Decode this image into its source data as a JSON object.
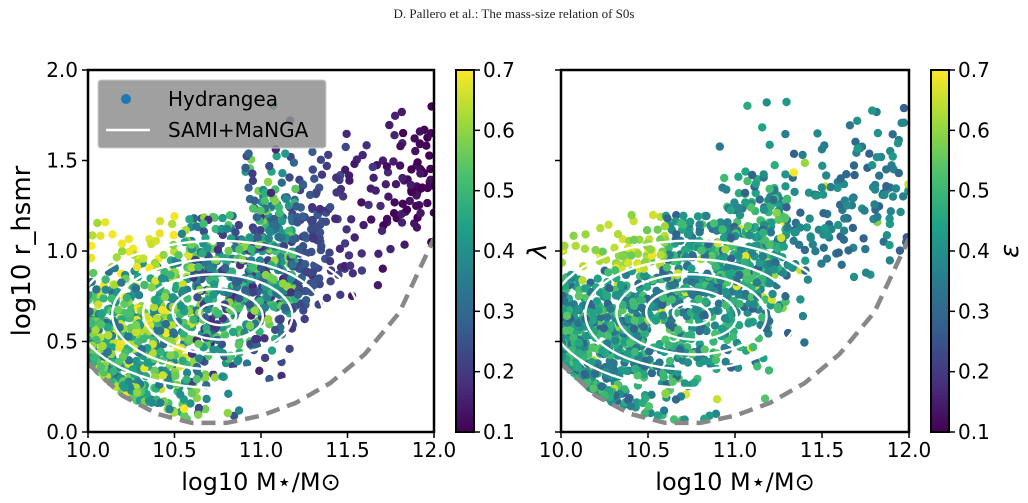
{
  "header": "D. Pallero et al.: The mass-size relation of S0s",
  "colors": {
    "contour": "#ffffff",
    "boundary": "#888888"
  },
  "chart_data": [
    {
      "type": "scatter",
      "xlabel": "log10 M⋆/M⊙",
      "ylabel": "log10 r_hsmr",
      "xlim": [
        10.0,
        12.0
      ],
      "ylim": [
        0.0,
        2.0
      ],
      "xticks": [
        "10.0",
        "10.5",
        "11.0",
        "11.5",
        "12.0"
      ],
      "yticks": [
        "0.0",
        "0.5",
        "1.0",
        "1.5",
        "2.0"
      ],
      "colorbar": {
        "label": "λ",
        "range": [
          0.1,
          0.7
        ],
        "ticks": [
          "0.1",
          "0.2",
          "0.3",
          "0.4",
          "0.5",
          "0.6",
          "0.7"
        ],
        "cmap": "viridis"
      },
      "legend": {
        "position": "top-left",
        "entries": [
          "Hydrangea",
          "SAMI+MaNGA"
        ]
      },
      "series": [
        {
          "name": "Hydrangea",
          "kind": "points",
          "approx_count": 1500,
          "x_range": [
            10.0,
            12.0
          ],
          "y_range": [
            0.05,
            1.85
          ]
        },
        {
          "name": "SAMI+MaNGA",
          "kind": "density-contours",
          "levels": 5,
          "peak": [
            10.75,
            0.65
          ]
        }
      ],
      "boundary": {
        "style": "dashed",
        "x": [
          10.0,
          10.2,
          10.4,
          10.6,
          10.8,
          11.0,
          11.2,
          11.4,
          11.6,
          11.8,
          12.0
        ],
        "y": [
          0.38,
          0.2,
          0.1,
          0.05,
          0.05,
          0.09,
          0.16,
          0.27,
          0.43,
          0.66,
          1.07
        ]
      }
    },
    {
      "type": "scatter",
      "xlabel": "log10 M⋆/M⊙",
      "ylabel": "",
      "xlim": [
        10.0,
        12.0
      ],
      "ylim": [
        0.0,
        2.0
      ],
      "xticks": [
        "10.0",
        "10.5",
        "11.0",
        "11.5",
        "12.0"
      ],
      "colorbar": {
        "label": "ε",
        "range": [
          0.1,
          0.7
        ],
        "ticks": [
          "0.1",
          "0.2",
          "0.3",
          "0.4",
          "0.5",
          "0.6",
          "0.7"
        ],
        "cmap": "viridis"
      },
      "series": [
        {
          "name": "Hydrangea",
          "kind": "points",
          "approx_count": 1500,
          "x_range": [
            10.0,
            12.0
          ],
          "y_range": [
            0.05,
            1.85
          ]
        },
        {
          "name": "SAMI+MaNGA",
          "kind": "density-contours",
          "levels": 5,
          "peak": [
            10.75,
            0.65
          ]
        }
      ],
      "boundary": {
        "style": "dashed",
        "x": [
          10.0,
          10.2,
          10.4,
          10.6,
          10.8,
          11.0,
          11.2,
          11.4,
          11.6,
          11.8,
          12.0
        ],
        "y": [
          0.38,
          0.2,
          0.1,
          0.05,
          0.05,
          0.09,
          0.16,
          0.27,
          0.43,
          0.66,
          1.07
        ]
      }
    }
  ]
}
